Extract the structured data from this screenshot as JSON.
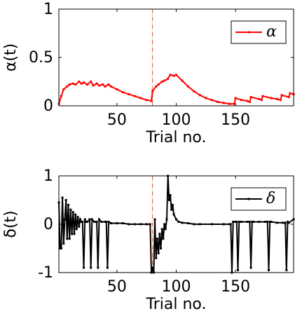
{
  "chart_data": [
    {
      "type": "line",
      "xlabel": "Trial no.",
      "ylabel": "α(t)",
      "xlim": [
        1,
        199
      ],
      "ylim": [
        0,
        1
      ],
      "xticks": [
        50,
        100,
        150
      ],
      "yticks": [
        0,
        0.5,
        1
      ],
      "vline": 80,
      "vline_color": "#d95319",
      "legend": "upper right",
      "x": [
        1,
        3,
        5,
        8,
        10,
        13,
        15,
        18,
        20,
        22,
        25,
        28,
        30,
        33,
        35,
        38,
        40,
        43,
        45,
        50,
        55,
        60,
        65,
        70,
        75,
        79,
        80,
        83,
        85,
        88,
        90,
        93,
        95,
        98,
        100,
        105,
        110,
        115,
        120,
        125,
        130,
        135,
        140,
        145,
        149,
        150,
        155,
        160,
        162,
        163,
        170,
        172,
        173,
        180,
        185,
        188,
        189,
        195,
        196,
        199
      ],
      "series": [
        {
          "name": "α",
          "color": "#ff0000",
          "values": [
            0.02,
            0.1,
            0.17,
            0.2,
            0.22,
            0.23,
            0.22,
            0.25,
            0.23,
            0.24,
            0.22,
            0.25,
            0.21,
            0.23,
            0.21,
            0.22,
            0.2,
            0.22,
            0.2,
            0.17,
            0.14,
            0.12,
            0.1,
            0.08,
            0.06,
            0.05,
            0.15,
            0.2,
            0.22,
            0.25,
            0.26,
            0.28,
            0.32,
            0.31,
            0.32,
            0.26,
            0.2,
            0.15,
            0.11,
            0.08,
            0.06,
            0.04,
            0.03,
            0.02,
            0.02,
            0.08,
            0.06,
            0.05,
            0.04,
            0.09,
            0.07,
            0.06,
            0.1,
            0.08,
            0.07,
            0.06,
            0.11,
            0.09,
            0.13,
            0.12
          ]
        }
      ]
    },
    {
      "type": "line",
      "xlabel": "Trial no.",
      "ylabel": "δ(t)",
      "xlim": [
        1,
        199
      ],
      "ylim": [
        -1,
        1
      ],
      "xticks": [
        50,
        100,
        150
      ],
      "yticks": [
        -1,
        0,
        1
      ],
      "vline": 80,
      "vline_color": "#d95319",
      "legend": "upper right",
      "x": [
        1,
        2,
        3,
        4,
        5,
        6,
        7,
        8,
        9,
        10,
        11,
        12,
        13,
        14,
        15,
        16,
        17,
        18,
        19,
        20,
        21,
        22,
        23,
        24,
        25,
        27,
        28,
        29,
        31,
        33,
        34,
        35,
        37,
        40,
        41,
        42,
        43,
        45,
        50,
        55,
        60,
        65,
        70,
        75,
        78,
        79,
        80,
        81,
        82,
        83,
        84,
        85,
        86,
        87,
        88,
        89,
        90,
        91,
        92,
        93,
        94,
        95,
        96,
        97,
        98,
        100,
        102,
        105,
        110,
        115,
        120,
        130,
        140,
        145,
        146,
        147,
        148,
        150,
        151,
        152,
        153,
        155,
        160,
        162,
        163,
        164,
        165,
        170,
        175,
        177,
        178,
        179,
        180,
        185,
        190,
        192,
        193,
        194,
        195,
        199
      ],
      "series": [
        {
          "name": "δ",
          "color": "#000000",
          "values": [
            0.45,
            -0.5,
            -0.5,
            0.55,
            -0.4,
            0.1,
            0.5,
            -0.3,
            0.4,
            -0.3,
            0.3,
            -0.2,
            0.25,
            -0.2,
            0.2,
            -0.1,
            0.15,
            -0.05,
            0.1,
            0.05,
            0.05,
            -0.9,
            0.1,
            0.05,
            0.05,
            0.1,
            -0.9,
            0.1,
            0.05,
            0.05,
            -0.9,
            0.1,
            0.05,
            0.05,
            0.05,
            -0.9,
            0.05,
            0.02,
            0.02,
            0.02,
            0,
            0,
            0,
            0,
            0,
            -1,
            -0.9,
            -1,
            0.1,
            -0.7,
            -0.3,
            -0.6,
            -0.2,
            -0.5,
            -0.1,
            -0.3,
            0,
            -0.1,
            0.1,
            1.0,
            0.5,
            0.6,
            0.3,
            0.4,
            0.2,
            0.1,
            0.05,
            0.03,
            0.02,
            0,
            0,
            0,
            0,
            0,
            0,
            -1,
            0.05,
            0.05,
            0.05,
            -0.95,
            0.05,
            0.05,
            0.05,
            0.05,
            -0.9,
            0.05,
            0.05,
            0.05,
            0.05,
            0.05,
            -0.95,
            0.05,
            0.05,
            0.03,
            0.03,
            0.03,
            -0.95,
            0.05,
            0.03,
            0.1
          ]
        }
      ]
    }
  ]
}
